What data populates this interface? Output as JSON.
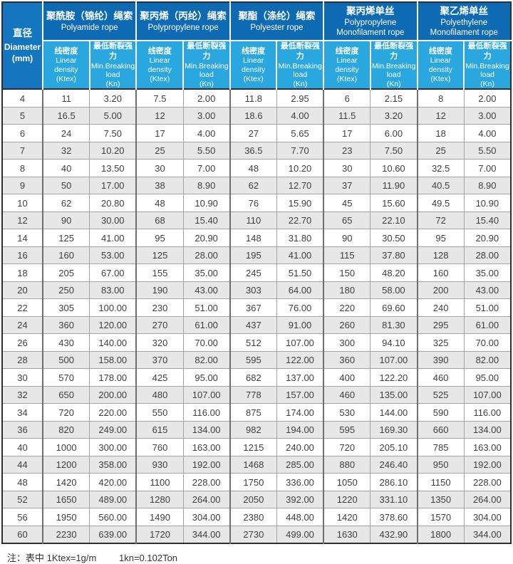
{
  "colors": {
    "group_header_blue": "#0d6ab3",
    "sub_header_blue": "#2ba7e0",
    "diameter_cell_blue": "#1476bf",
    "alt_row_gray": "#e7e7e7",
    "outer_border": "#2e2e2e"
  },
  "table": {
    "diameter_header": {
      "cn": "直径",
      "en": "Diameter",
      "unit": "(mm)"
    },
    "groups": [
      {
        "cn": "聚酰胺（锦纶）绳索",
        "en": "Polyamide rope"
      },
      {
        "cn": "聚丙烯（丙纶）绳索",
        "en": "Polypropylene rope"
      },
      {
        "cn": "聚酯（涤纶）绳索",
        "en": "Polyester rope"
      },
      {
        "cn": "聚丙烯单丝",
        "en": "Polypropylene Monofilament rope"
      },
      {
        "cn": "聚乙烯单丝",
        "en": "Polyethylene Monofilament rope"
      }
    ],
    "sub_headers": {
      "density": {
        "cn": "线密度",
        "en": "Linear density",
        "unit": "(Ktex)"
      },
      "breaking": {
        "cn": "最低断裂强力",
        "en": "Min.Breaking",
        "en2": "load",
        "unit": "(Kn)"
      }
    },
    "rows": [
      [
        "4",
        "11",
        "3.20",
        "7.5",
        "2.00",
        "11.8",
        "2.95",
        "6",
        "2.15",
        "8",
        "2.00"
      ],
      [
        "5",
        "16.5",
        "5.00",
        "12",
        "3.00",
        "18.6",
        "4.00",
        "11.5",
        "3.20",
        "12",
        "3.00"
      ],
      [
        "6",
        "24",
        "7.50",
        "17",
        "4.00",
        "27",
        "5.65",
        "17",
        "6.00",
        "18",
        "4.00"
      ],
      [
        "7",
        "32",
        "10.20",
        "25",
        "5.50",
        "36.5",
        "7.70",
        "23",
        "7.50",
        "25",
        "5.50"
      ],
      [
        "8",
        "40",
        "13.50",
        "30",
        "7.00",
        "48",
        "10.20",
        "30",
        "10.60",
        "32.5",
        "7.00"
      ],
      [
        "9",
        "50",
        "17.00",
        "38",
        "8.90",
        "62",
        "12.70",
        "37",
        "11.90",
        "40.5",
        "8.90"
      ],
      [
        "10",
        "62",
        "20.80",
        "48",
        "10.90",
        "76",
        "15.90",
        "45",
        "15.60",
        "49.5",
        "10.90"
      ],
      [
        "12",
        "90",
        "30.00",
        "68",
        "15.40",
        "110",
        "22.70",
        "65",
        "22.10",
        "72",
        "15.40"
      ],
      [
        "14",
        "125",
        "41.00",
        "95",
        "20.90",
        "148",
        "31.80",
        "90",
        "30.50",
        "95",
        "20.90"
      ],
      [
        "16",
        "160",
        "53.00",
        "125",
        "28.00",
        "195",
        "41.00",
        "115",
        "37.80",
        "128",
        "28.00"
      ],
      [
        "18",
        "205",
        "67.00",
        "155",
        "35.00",
        "245",
        "51.50",
        "150",
        "48.20",
        "160",
        "35.00"
      ],
      [
        "20",
        "250",
        "83.00",
        "190",
        "43.00",
        "303",
        "64.00",
        "180",
        "58.00",
        "200",
        "43.00"
      ],
      [
        "22",
        "305",
        "100.00",
        "230",
        "51.00",
        "367",
        "76.00",
        "220",
        "69.60",
        "240",
        "51.00"
      ],
      [
        "24",
        "360",
        "120.00",
        "270",
        "61.00",
        "437",
        "91.00",
        "260",
        "81.30",
        "295",
        "61.00"
      ],
      [
        "26",
        "430",
        "140.00",
        "320",
        "70.00",
        "512",
        "107.00",
        "300",
        "94.10",
        "325",
        "70.00"
      ],
      [
        "28",
        "500",
        "158.00",
        "370",
        "82.00",
        "595",
        "122.00",
        "360",
        "107.00",
        "390",
        "82.00"
      ],
      [
        "30",
        "570",
        "178.00",
        "425",
        "95.00",
        "682",
        "137.00",
        "400",
        "122.20",
        "460",
        "95.00"
      ],
      [
        "32",
        "650",
        "200.00",
        "480",
        "107.00",
        "778",
        "157.00",
        "460",
        "135.00",
        "525",
        "107.00"
      ],
      [
        "34",
        "720",
        "220.00",
        "550",
        "116.00",
        "875",
        "174.00",
        "530",
        "144.00",
        "590",
        "116.00"
      ],
      [
        "36",
        "820",
        "249.00",
        "615",
        "134.00",
        "982",
        "194.00",
        "595",
        "169.30",
        "660",
        "134.00"
      ],
      [
        "40",
        "1000",
        "300.00",
        "760",
        "163.00",
        "1215",
        "240.00",
        "720",
        "205.10",
        "785",
        "163.00"
      ],
      [
        "44",
        "1200",
        "358.00",
        "930",
        "192.00",
        "1468",
        "285.00",
        "880",
        "246.40",
        "950",
        "192.00"
      ],
      [
        "48",
        "1420",
        "420.00",
        "1100",
        "228.00",
        "1750",
        "336.00",
        "1050",
        "286.10",
        "1150",
        "228.00"
      ],
      [
        "52",
        "1650",
        "489.00",
        "1280",
        "264.00",
        "2050",
        "392.00",
        "1220",
        "331.10",
        "1350",
        "264.00"
      ],
      [
        "56",
        "1950",
        "560.00",
        "1490",
        "304.00",
        "2380",
        "448.00",
        "1420",
        "378.60",
        "1570",
        "304.00"
      ],
      [
        "60",
        "2230",
        "639.00",
        "1720",
        "344.00",
        "2730",
        "499.00",
        "1630",
        "432.90",
        "1800",
        "344.00"
      ]
    ]
  },
  "note": {
    "text1": "注：表中 1Ktex=1g/m",
    "text2": "1kn=0.102Ton"
  }
}
